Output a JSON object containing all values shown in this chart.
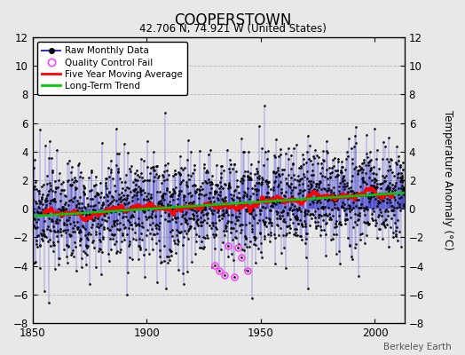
{
  "title": "COOPERSTOWN",
  "subtitle": "42.706 N, 74.921 W (United States)",
  "ylabel": "Temperature Anomaly (°C)",
  "attribution": "Berkeley Earth",
  "xlim": [
    1850,
    2013
  ],
  "ylim": [
    -8,
    12
  ],
  "yticks": [
    -8,
    -6,
    -4,
    -2,
    0,
    2,
    4,
    6,
    8,
    10,
    12
  ],
  "xticks": [
    1850,
    1900,
    1950,
    2000
  ],
  "bg_color": "#e8e8e8",
  "raw_line_color": "#3333cc",
  "raw_dot_color": "#000000",
  "qc_color": "#ff44ff",
  "moving_avg_color": "#ff0000",
  "trend_color": "#00cc00",
  "figsize": [
    5.24,
    4.0
  ],
  "dpi": 100,
  "seed": 17
}
